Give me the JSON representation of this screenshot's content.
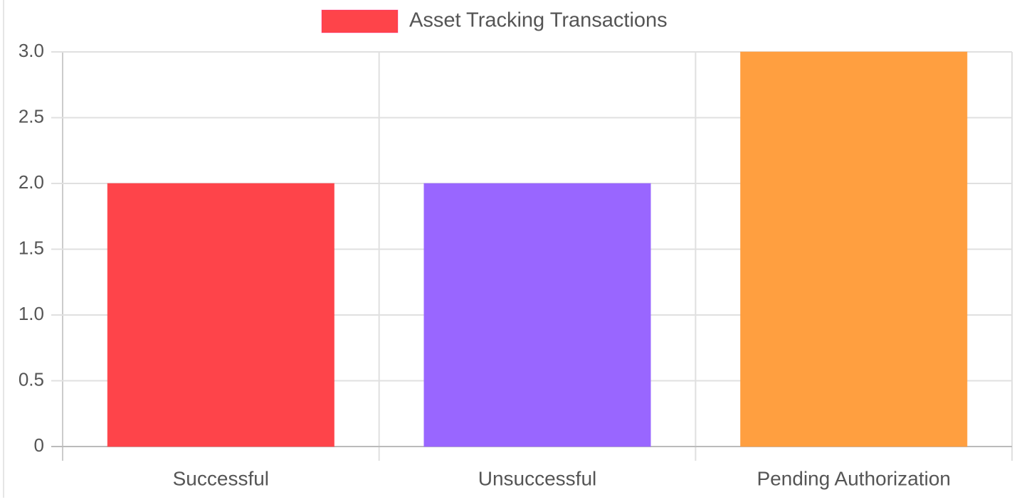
{
  "chart_data": {
    "type": "bar",
    "categories": [
      "Successful",
      "Unsuccessful",
      "Pending Authorization"
    ],
    "series": [
      {
        "name": "Asset Tracking Transactions",
        "color": "#fe444a",
        "colors": [
          "#fe444a",
          "#9966ff",
          "#ff9f40"
        ],
        "values": [
          2,
          2,
          3
        ]
      }
    ],
    "ylim": [
      0,
      3
    ],
    "yticks": [
      0,
      0.5,
      {
        "value": 1,
        "label": "1.0"
      },
      1.5,
      {
        "value": 2,
        "label": "2.0"
      },
      2.5,
      {
        "value": 3,
        "label": "3.0"
      }
    ],
    "grid": true
  }
}
